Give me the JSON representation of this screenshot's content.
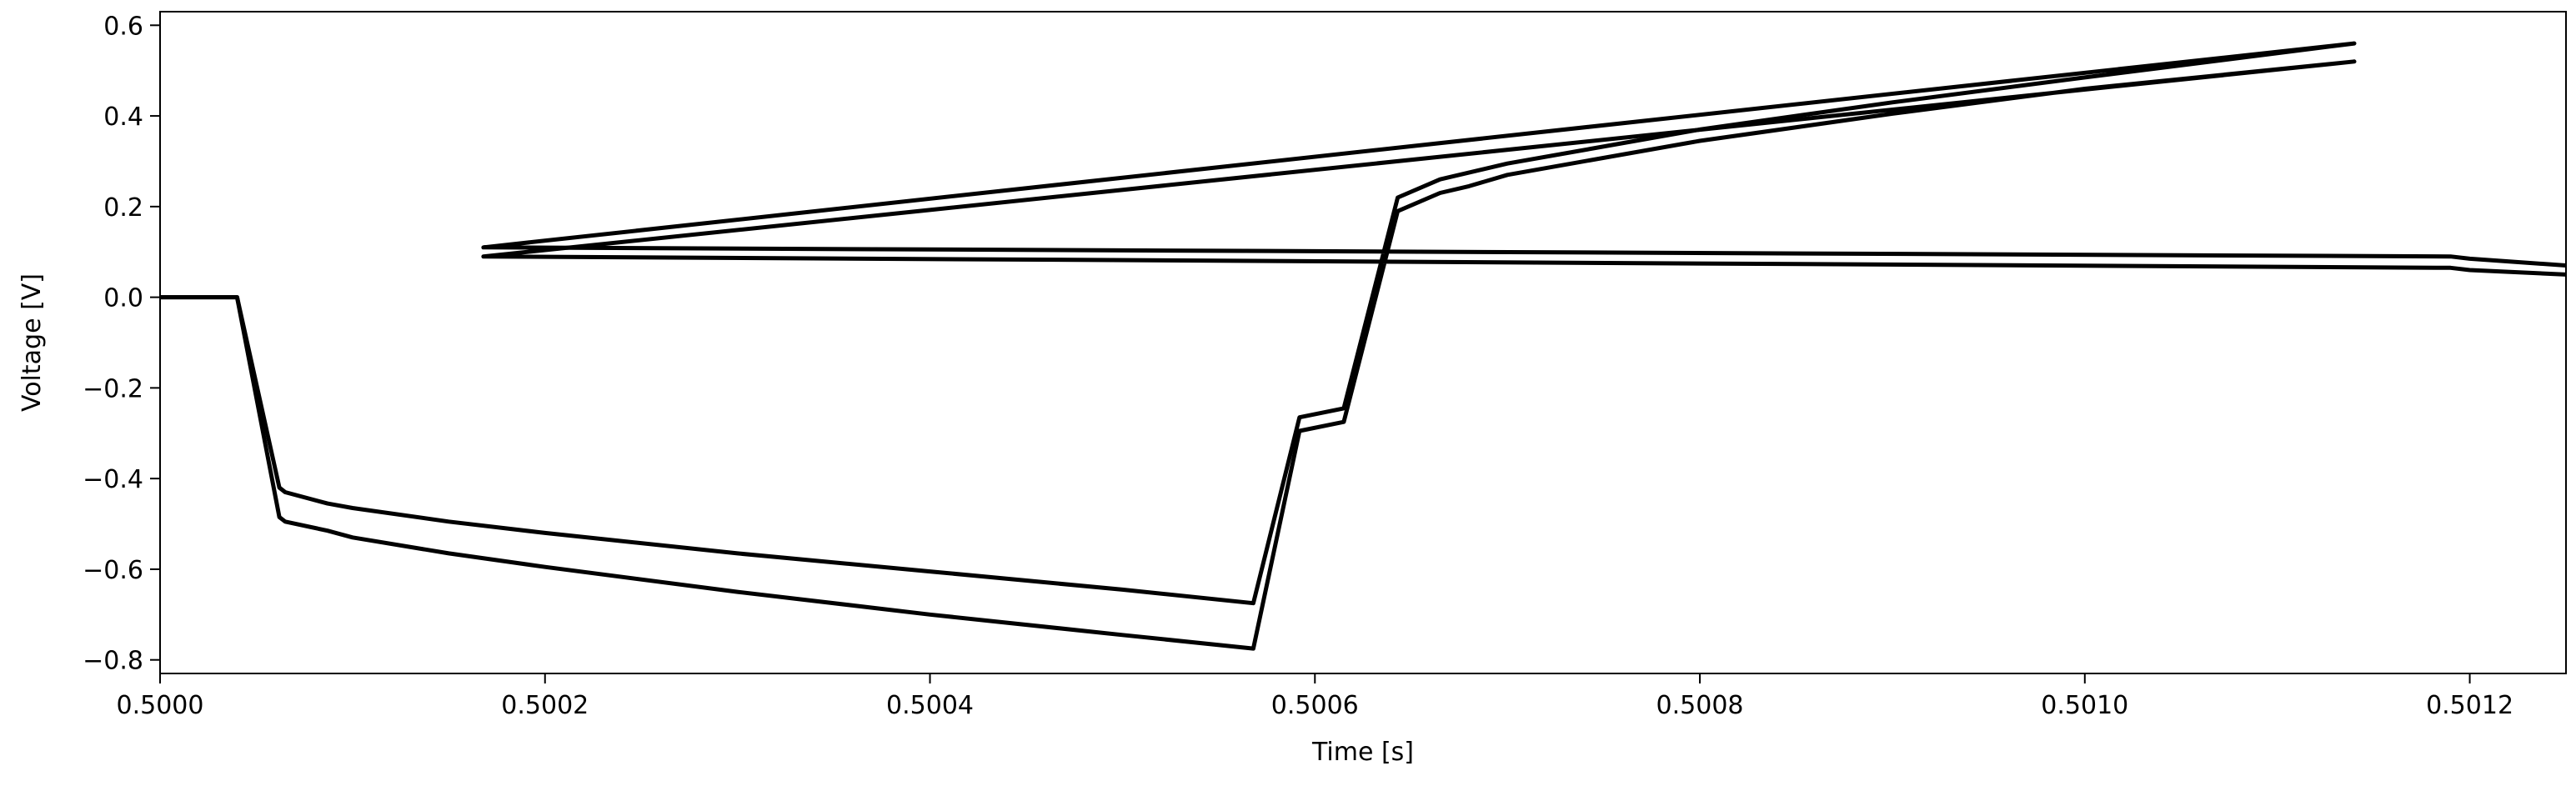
{
  "chart_data": {
    "type": "line",
    "title": "",
    "xlabel": "Time [s]",
    "ylabel": "Voltage [V]",
    "xlim": [
      0.5,
      0.50125
    ],
    "ylim": [
      -0.83,
      0.63
    ],
    "x_ticks": [
      0.5,
      0.5002,
      0.5004,
      0.5006,
      0.5008,
      0.501,
      0.5012
    ],
    "x_tick_labels": [
      "0.5000",
      "0.5002",
      "0.5004",
      "0.5006",
      "0.5008",
      "0.5010",
      "0.5012"
    ],
    "y_ticks": [
      -0.8,
      -0.6,
      -0.4,
      -0.2,
      0.0,
      0.2,
      0.4,
      0.6
    ],
    "y_tick_labels": [
      "−0.8",
      "−0.6",
      "−0.4",
      "−0.2",
      "0.0",
      "0.2",
      "0.4",
      "0.6"
    ],
    "grid": false,
    "legend": false,
    "line_color": "#000000",
    "series": [
      {
        "x": [
          0.5,
          0.50004,
          0.500062,
          0.500065,
          0.500087,
          0.5001,
          0.50015,
          0.5002,
          0.5003,
          0.5004,
          0.5005,
          0.500568,
          0.500592,
          0.500615,
          0.500643,
          0.500665,
          0.50068,
          0.5007,
          0.5008,
          0.5009,
          0.501,
          0.50114,
          0.500168,
          0.50119,
          0.5012,
          0.50125
        ],
        "y": [
          0.0,
          0.0,
          -0.42,
          -0.43,
          -0.455,
          -0.465,
          -0.495,
          -0.52,
          -0.565,
          -0.605,
          -0.645,
          -0.675,
          -0.265,
          -0.245,
          0.22,
          0.26,
          0.275,
          0.295,
          0.37,
          0.43,
          0.485,
          0.56,
          0.11,
          0.09,
          0.085,
          0.07
        ]
      },
      {
        "x": [
          0.5,
          0.50004,
          0.500062,
          0.500065,
          0.500087,
          0.5001,
          0.50015,
          0.5002,
          0.5003,
          0.5004,
          0.5005,
          0.500568,
          0.500592,
          0.500615,
          0.500643,
          0.500665,
          0.50068,
          0.5007,
          0.5008,
          0.5009,
          0.501,
          0.50114,
          0.500168,
          0.50119,
          0.5012,
          0.50125
        ],
        "y": [
          0.0,
          0.0,
          -0.485,
          -0.495,
          -0.515,
          -0.53,
          -0.565,
          -0.595,
          -0.65,
          -0.7,
          -0.745,
          -0.775,
          -0.295,
          -0.275,
          0.19,
          0.23,
          0.245,
          0.27,
          0.345,
          0.405,
          0.46,
          0.52,
          0.09,
          0.065,
          0.06,
          0.05
        ]
      }
    ]
  }
}
